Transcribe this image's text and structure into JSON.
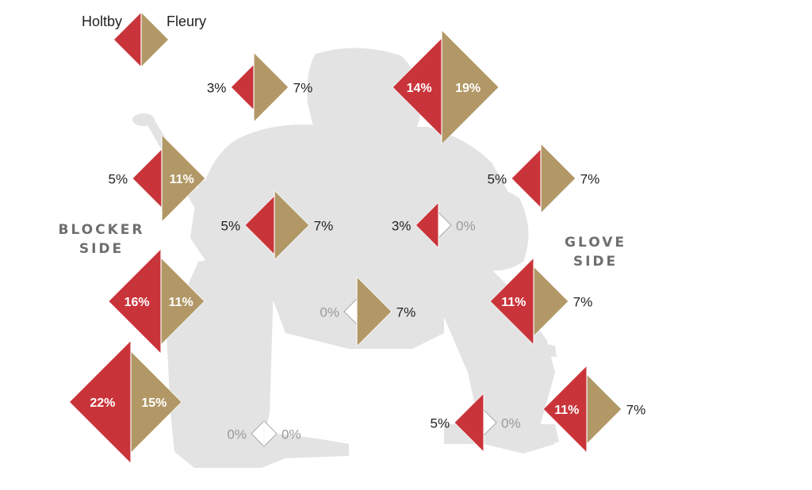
{
  "chart_data": {
    "type": "diamond-split",
    "legend": [
      {
        "name": "Holtby",
        "color": "#c9343a"
      },
      {
        "name": "Fleury",
        "color": "#b19866"
      }
    ],
    "side_labels": {
      "blocker": [
        "BLOCKER",
        "SIDE"
      ],
      "glove": [
        "GLOVE",
        "SIDE"
      ]
    },
    "zones": [
      {
        "holtby": 3,
        "fleury": 7,
        "holtby_label": "3%",
        "fleury_label": "7%"
      },
      {
        "holtby": 14,
        "fleury": 19,
        "holtby_label": "14%",
        "fleury_label": "19%"
      },
      {
        "holtby": 5,
        "fleury": 11,
        "holtby_label": "5%",
        "fleury_label": "11%"
      },
      {
        "holtby": 5,
        "fleury": 7,
        "holtby_label": "5%",
        "fleury_label": "7%"
      },
      {
        "holtby": 5,
        "fleury": 7,
        "holtby_label": "5%",
        "fleury_label": "7%"
      },
      {
        "holtby": 3,
        "fleury": 0,
        "holtby_label": "3%",
        "fleury_label": "0%"
      },
      {
        "holtby": 16,
        "fleury": 11,
        "holtby_label": "16%",
        "fleury_label": "11%"
      },
      {
        "holtby": 11,
        "fleury": 7,
        "holtby_label": "11%",
        "fleury_label": "7%"
      },
      {
        "holtby": 0,
        "fleury": 7,
        "holtby_label": "0%",
        "fleury_label": "7%"
      },
      {
        "holtby": 22,
        "fleury": 15,
        "holtby_label": "22%",
        "fleury_label": "15%"
      },
      {
        "holtby": 0,
        "fleury": 0,
        "holtby_label": "0%",
        "fleury_label": "0%"
      },
      {
        "holtby": 5,
        "fleury": 0,
        "holtby_label": "5%",
        "fleury_label": "0%"
      },
      {
        "holtby": 11,
        "fleury": 7,
        "holtby_label": "11%",
        "fleury_label": "7%"
      }
    ]
  }
}
